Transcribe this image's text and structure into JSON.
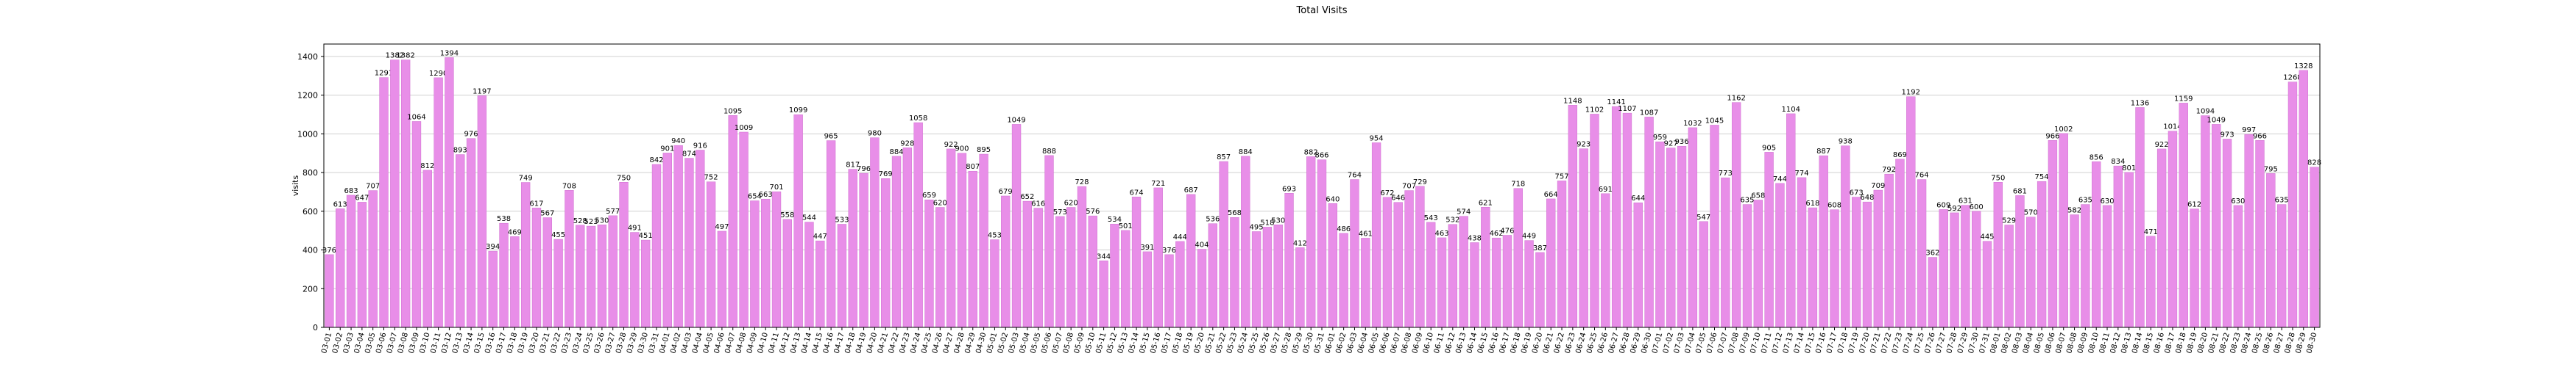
{
  "chart_data": {
    "type": "bar",
    "title": "Total Visits",
    "y_label": "visits",
    "categories": [
      "03-01",
      "03-02",
      "03-03",
      "03-04",
      "03-05",
      "03-06",
      "03-07",
      "03-08",
      "03-09",
      "03-10",
      "03-11",
      "03-12",
      "03-13",
      "03-14",
      "03-15",
      "03-16",
      "03-17",
      "03-18",
      "03-19",
      "03-20",
      "03-21",
      "03-22",
      "03-23",
      "03-24",
      "03-25",
      "03-26",
      "03-27",
      "03-28",
      "03-29",
      "03-30",
      "03-31",
      "04-01",
      "04-02",
      "04-03",
      "04-04",
      "04-05",
      "04-06",
      "04-07",
      "04-08",
      "04-09",
      "04-10",
      "04-11",
      "04-12",
      "04-13",
      "04-14",
      "04-15",
      "04-16",
      "04-17",
      "04-18",
      "04-19",
      "04-20",
      "04-21",
      "04-22",
      "04-23",
      "04-24",
      "04-25",
      "04-26",
      "04-27",
      "04-28",
      "04-29",
      "04-30",
      "05-01",
      "05-02",
      "05-03",
      "05-04",
      "05-05",
      "05-06",
      "05-07",
      "05-08",
      "05-09",
      "05-10",
      "05-11",
      "05-12",
      "05-13",
      "05-14",
      "05-15",
      "05-16",
      "05-17",
      "05-18",
      "05-19",
      "05-20",
      "05-21",
      "05-22",
      "05-23",
      "05-24",
      "05-25",
      "05-26",
      "05-27",
      "05-28",
      "05-29",
      "05-30",
      "05-31",
      "06-01",
      "06-02",
      "06-03",
      "06-04",
      "06-05",
      "06-06",
      "06-07",
      "06-08",
      "06-09",
      "06-10",
      "06-11",
      "06-12",
      "06-13",
      "06-14",
      "06-15",
      "06-16",
      "06-17",
      "06-18",
      "06-19",
      "06-20",
      "06-21",
      "06-22",
      "06-23",
      "06-24",
      "06-25",
      "06-26",
      "06-27",
      "06-28",
      "06-29",
      "06-30",
      "07-01",
      "07-02",
      "07-03",
      "07-04",
      "07-05",
      "07-06",
      "07-07",
      "07-08",
      "07-09",
      "07-10",
      "07-11",
      "07-12",
      "07-13",
      "07-14",
      "07-15",
      "07-16",
      "07-17",
      "07-18",
      "07-19",
      "07-20",
      "07-21",
      "07-22",
      "07-23",
      "07-24",
      "07-25",
      "07-26",
      "07-27",
      "07-28",
      "07-29",
      "07-30",
      "07-31",
      "08-01",
      "08-02",
      "08-03",
      "08-04",
      "08-05",
      "08-06",
      "08-07",
      "08-08",
      "08-09",
      "08-10",
      "08-11",
      "08-12",
      "08-13",
      "08-14",
      "08-15",
      "08-16",
      "08-17",
      "08-18",
      "08-19",
      "08-20",
      "08-21",
      "08-22",
      "08-23",
      "08-24",
      "08-25",
      "08-26",
      "08-27",
      "08-28",
      "08-29",
      "08-30"
    ],
    "values": [
      376,
      613,
      683,
      647,
      707,
      1291,
      1382,
      1382,
      1064,
      812,
      1290,
      1394,
      893,
      976,
      1197,
      394,
      538,
      469,
      749,
      617,
      567,
      455,
      708,
      528,
      523,
      530,
      577,
      750,
      491,
      451,
      842,
      901,
      940,
      874,
      916,
      752,
      497,
      1095,
      1009,
      654,
      663,
      701,
      558,
      1099,
      544,
      447,
      965,
      533,
      817,
      796,
      980,
      769,
      884,
      928,
      1058,
      659,
      620,
      922,
      900,
      807,
      895,
      453,
      679,
      1049,
      652,
      616,
      888,
      573,
      620,
      728,
      576,
      344,
      534,
      501,
      674,
      391,
      721,
      376,
      444,
      687,
      404,
      536,
      857,
      568,
      884,
      495,
      518,
      530,
      693,
      412,
      882,
      866,
      640,
      486,
      764,
      461,
      954,
      672,
      646,
      707,
      729,
      543,
      463,
      532,
      574,
      438,
      621,
      462,
      476,
      718,
      449,
      387,
      664,
      757,
      1148,
      923,
      1102,
      691,
      1141,
      1107,
      644,
      1087,
      959,
      927,
      936,
      1032,
      547,
      1045,
      773,
      1162,
      635,
      658,
      905,
      744,
      1104,
      774,
      618,
      887,
      608,
      938,
      673,
      648,
      709,
      792,
      869,
      1192,
      764,
      362,
      609,
      592,
      631,
      600,
      445,
      750,
      529,
      681,
      570,
      754,
      966,
      1002,
      582,
      635,
      856,
      630,
      834,
      801,
      1136,
      471,
      922,
      1014,
      1159,
      612,
      1094,
      1049,
      973,
      630,
      997,
      966,
      795,
      635,
      1268,
      1328,
      828
    ],
    "color": "#e88ee8",
    "ylim": [
      0,
      1464
    ],
    "yticks": [
      0,
      200,
      400,
      600,
      800,
      1000,
      1200,
      1400
    ],
    "grid": true
  }
}
